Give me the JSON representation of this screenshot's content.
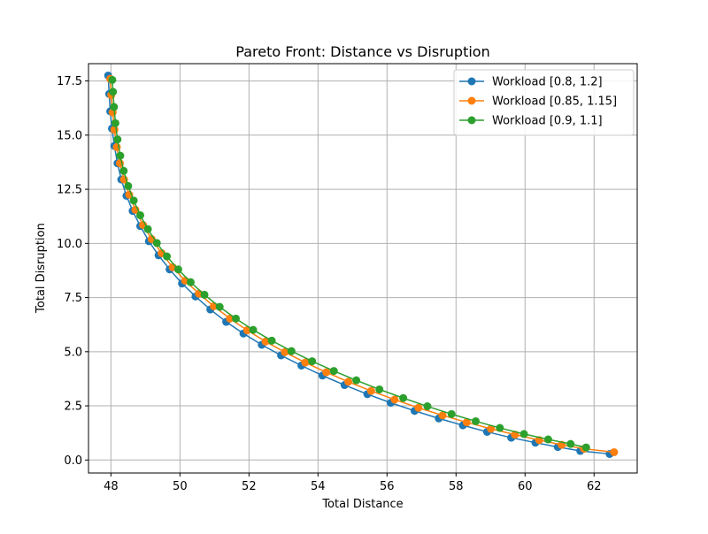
{
  "chart_data": {
    "type": "line",
    "title": "Pareto Front: Distance vs Disruption",
    "xlabel": "Total Distance",
    "ylabel": "Total Disruption",
    "xlim": [
      47.35,
      63.25
    ],
    "ylim": [
      -0.6,
      18.3
    ],
    "xticks": [
      48,
      50,
      52,
      54,
      56,
      58,
      60,
      62
    ],
    "xtick_labels": [
      "48",
      "50",
      "52",
      "54",
      "56",
      "58",
      "60",
      "62"
    ],
    "yticks": [
      0.0,
      2.5,
      5.0,
      7.5,
      10.0,
      12.5,
      15.0,
      17.5
    ],
    "ytick_labels": [
      "0.0",
      "2.5",
      "5.0",
      "7.5",
      "10.0",
      "12.5",
      "15.0",
      "17.5"
    ],
    "grid": true,
    "legend_position": "top-right",
    "series": [
      {
        "name": "Workload [0.8, 1.2]",
        "color": "#1f77b4",
        "marker": "circle",
        "x": [
          47.92,
          47.95,
          47.98,
          48.03,
          48.1,
          48.19,
          48.3,
          48.45,
          48.63,
          48.85,
          49.1,
          49.38,
          49.7,
          50.06,
          50.45,
          50.88,
          51.34,
          51.84,
          52.37,
          52.93,
          53.52,
          54.13,
          54.77,
          55.43,
          56.11,
          56.8,
          57.5,
          58.2,
          58.9,
          59.6,
          60.3,
          60.95,
          61.6,
          62.45
        ],
        "y": [
          17.75,
          16.9,
          16.1,
          15.3,
          14.5,
          13.7,
          12.95,
          12.2,
          11.5,
          10.8,
          10.1,
          9.45,
          8.8,
          8.15,
          7.55,
          6.95,
          6.38,
          5.84,
          5.32,
          4.83,
          4.36,
          3.9,
          3.46,
          3.04,
          2.64,
          2.27,
          1.92,
          1.6,
          1.3,
          1.03,
          0.8,
          0.6,
          0.42,
          0.28
        ]
      },
      {
        "name": "Workload [0.85, 1.15]",
        "color": "#ff7f0e",
        "marker": "circle",
        "x": [
          47.98,
          48.01,
          48.05,
          48.1,
          48.17,
          48.26,
          48.38,
          48.53,
          48.71,
          48.93,
          49.18,
          49.47,
          49.79,
          50.15,
          50.55,
          50.98,
          51.45,
          51.95,
          52.48,
          53.04,
          53.63,
          54.24,
          54.88,
          55.54,
          56.22,
          56.91,
          57.61,
          58.31,
          59.01,
          59.71,
          60.41,
          61.06,
          61.71,
          62.58
        ],
        "y": [
          17.6,
          16.85,
          16.05,
          15.25,
          14.45,
          13.7,
          12.95,
          12.25,
          11.55,
          10.85,
          10.2,
          9.55,
          8.9,
          8.28,
          7.68,
          7.1,
          6.53,
          5.99,
          5.47,
          4.98,
          4.5,
          4.05,
          3.61,
          3.19,
          2.79,
          2.41,
          2.06,
          1.74,
          1.44,
          1.17,
          0.92,
          0.7,
          0.52,
          0.36
        ]
      },
      {
        "name": "Workload [0.9, 1.1]",
        "color": "#2ca02c",
        "marker": "circle",
        "x": [
          48.04,
          48.06,
          48.09,
          48.13,
          48.19,
          48.27,
          48.37,
          48.5,
          48.66,
          48.85,
          49.07,
          49.33,
          49.62,
          49.95,
          50.31,
          50.71,
          51.15,
          51.62,
          52.12,
          52.66,
          53.23,
          53.83,
          54.46,
          55.11,
          55.78,
          56.47,
          57.17,
          57.87,
          58.57,
          59.27,
          59.97,
          60.67,
          61.32,
          61.77
        ],
        "y": [
          17.55,
          17.0,
          16.3,
          15.55,
          14.8,
          14.05,
          13.35,
          12.65,
          11.98,
          11.3,
          10.66,
          10.02,
          9.4,
          8.8,
          8.21,
          7.63,
          7.07,
          6.53,
          6.01,
          5.51,
          5.03,
          4.56,
          4.11,
          3.68,
          3.26,
          2.86,
          2.48,
          2.12,
          1.79,
          1.48,
          1.2,
          0.95,
          0.74,
          0.58
        ]
      }
    ]
  }
}
